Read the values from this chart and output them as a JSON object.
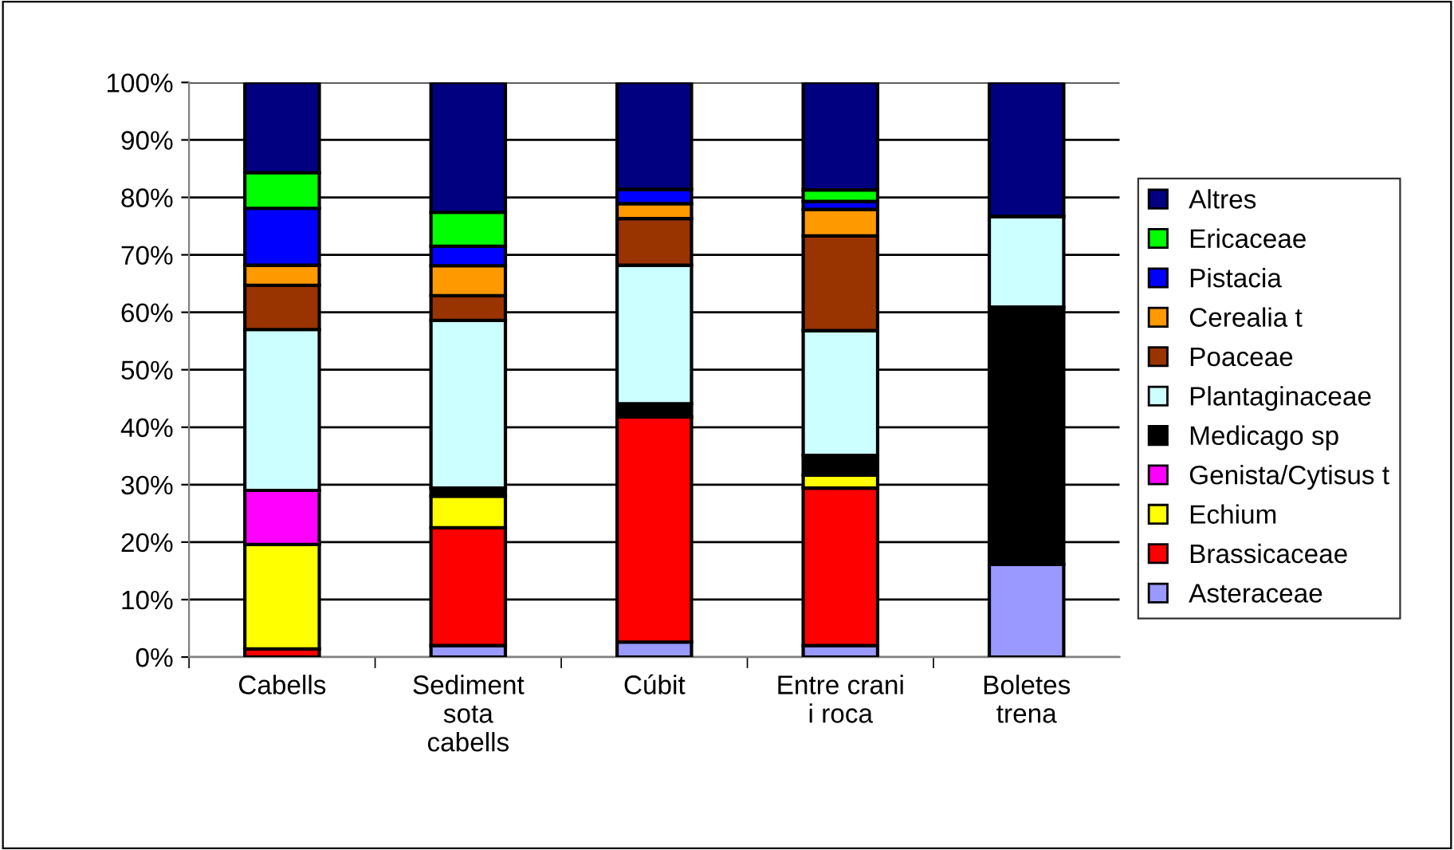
{
  "chart_data": {
    "type": "bar",
    "stacked": true,
    "categories": [
      "Cabells",
      "Sediment\nsota\ncabells",
      "Cúbit",
      "Entre crani\ni roca",
      "Boletes\ntrena"
    ],
    "series": [
      {
        "name": "Asteraceae",
        "color": "#9999ff",
        "values": [
          null,
          2.0,
          2.6,
          2.0,
          16.1
        ]
      },
      {
        "name": "Brassicaceae",
        "color": "#ff0000",
        "values": [
          1.4,
          20.5,
          39.2,
          27.4,
          0
        ]
      },
      {
        "name": "Echium",
        "color": "#ffff00",
        "values": [
          18.2,
          5.5,
          0,
          2.3,
          0
        ]
      },
      {
        "name": "Genista/Cytisus t",
        "color": "#ff00ff",
        "values": [
          9.4,
          0,
          0,
          0,
          0
        ]
      },
      {
        "name": "Medicago sp",
        "color": "#000000",
        "values": [
          0,
          1.4,
          2.3,
          3.4,
          44.8
        ]
      },
      {
        "name": "Plantaginaceae",
        "color": "#ccffff",
        "values": [
          28.0,
          29.2,
          24.1,
          21.7,
          15.8
        ]
      },
      {
        "name": "Poaceae",
        "color": "#993300",
        "values": [
          7.7,
          4.3,
          8.1,
          16.5,
          0
        ]
      },
      {
        "name": "Cerealia t",
        "color": "#ff9900",
        "values": [
          3.5,
          5.2,
          2.6,
          4.6,
          0
        ]
      },
      {
        "name": "Pistacia",
        "color": "#0000ff",
        "values": [
          9.9,
          3.4,
          2.5,
          1.4,
          0
        ]
      },
      {
        "name": "Ericaceae",
        "color": "#00ff00",
        "values": [
          6.2,
          5.9,
          0,
          2.0,
          0
        ]
      },
      {
        "name": "Altres",
        "color": "#000080",
        "values": [
          15.7,
          22.6,
          18.6,
          18.7,
          23.3
        ]
      }
    ],
    "ylim": [
      0,
      100
    ],
    "yticks": [
      {
        "value": 0,
        "label": "0%"
      },
      {
        "value": 10,
        "label": "10%"
      },
      {
        "value": 20,
        "label": "20%"
      },
      {
        "value": 30,
        "label": "30%"
      },
      {
        "value": 40,
        "label": "40%"
      },
      {
        "value": 50,
        "label": "50%"
      },
      {
        "value": 60,
        "label": "60%"
      },
      {
        "value": 70,
        "label": "70%"
      },
      {
        "value": 80,
        "label": "80%"
      },
      {
        "value": 90,
        "label": "90%"
      },
      {
        "value": 100,
        "label": "100%"
      }
    ],
    "grid": "y",
    "legend": "right"
  }
}
